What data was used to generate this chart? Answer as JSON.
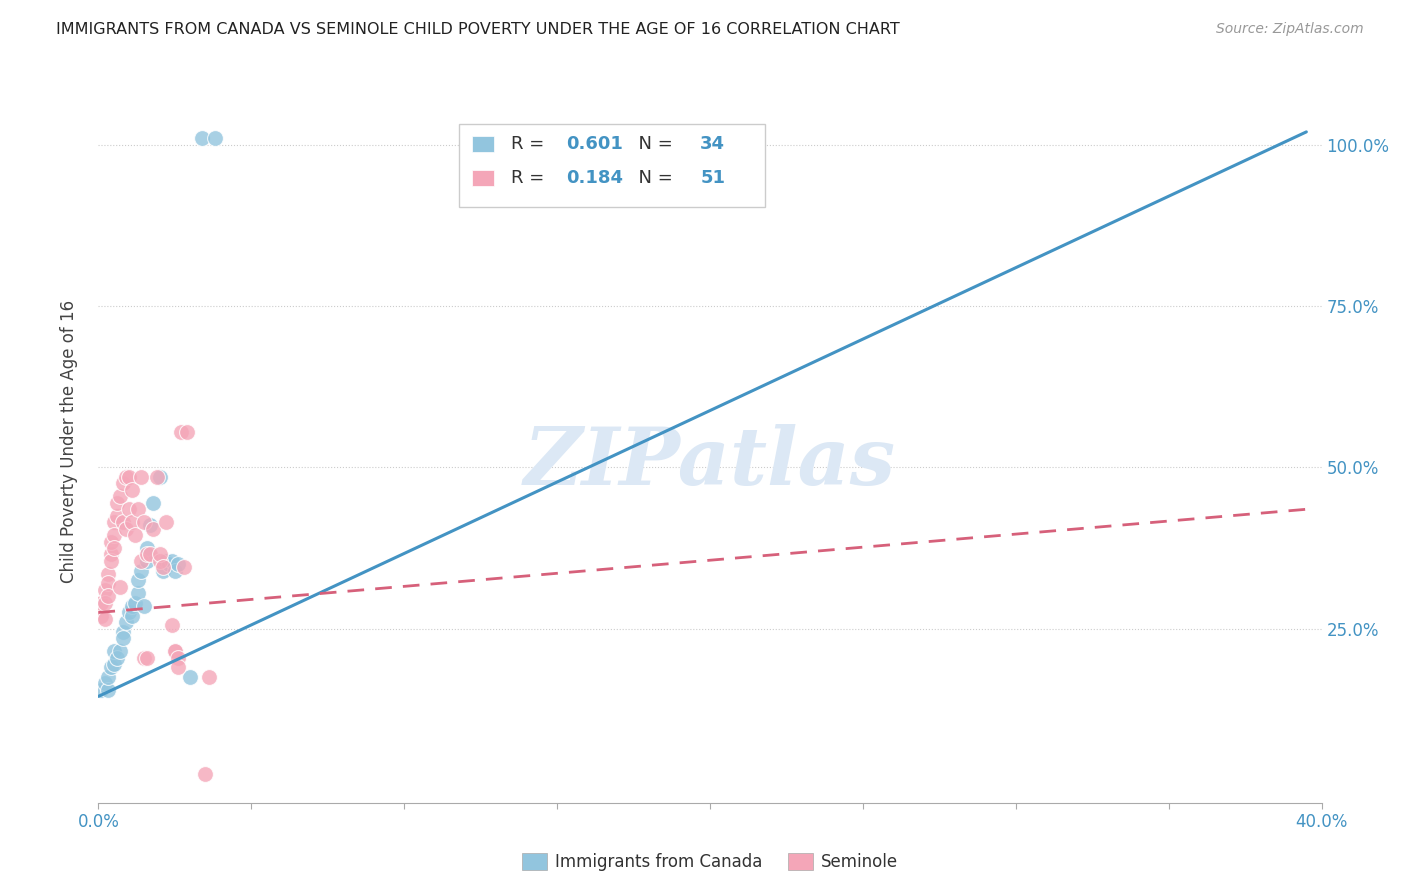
{
  "title": "IMMIGRANTS FROM CANADA VS SEMINOLE CHILD POVERTY UNDER THE AGE OF 16 CORRELATION CHART",
  "source": "Source: ZipAtlas.com",
  "ylabel": "Child Poverty Under the Age of 16",
  "xlim": [
    0.0,
    0.4
  ],
  "ylim": [
    -0.02,
    1.1
  ],
  "x_tick_positions": [
    0.0,
    0.05,
    0.1,
    0.15,
    0.2,
    0.25,
    0.3,
    0.35,
    0.4
  ],
  "y_tick_positions": [
    0.0,
    0.25,
    0.5,
    0.75,
    1.0
  ],
  "watermark": "ZIPatlas",
  "blue_color": "#92c5de",
  "pink_color": "#f4a6b8",
  "blue_line_color": "#4393c3",
  "pink_line_color": "#d6607a",
  "blue_r": "0.601",
  "blue_n": "34",
  "pink_r": "0.184",
  "pink_n": "51",
  "blue_scatter": [
    [
      0.001,
      0.155
    ],
    [
      0.002,
      0.165
    ],
    [
      0.003,
      0.155
    ],
    [
      0.003,
      0.175
    ],
    [
      0.004,
      0.19
    ],
    [
      0.005,
      0.195
    ],
    [
      0.005,
      0.215
    ],
    [
      0.006,
      0.205
    ],
    [
      0.007,
      0.215
    ],
    [
      0.008,
      0.245
    ],
    [
      0.008,
      0.235
    ],
    [
      0.009,
      0.26
    ],
    [
      0.01,
      0.275
    ],
    [
      0.011,
      0.285
    ],
    [
      0.011,
      0.27
    ],
    [
      0.012,
      0.29
    ],
    [
      0.013,
      0.305
    ],
    [
      0.013,
      0.325
    ],
    [
      0.014,
      0.34
    ],
    [
      0.015,
      0.285
    ],
    [
      0.016,
      0.355
    ],
    [
      0.016,
      0.375
    ],
    [
      0.017,
      0.41
    ],
    [
      0.018,
      0.445
    ],
    [
      0.02,
      0.485
    ],
    [
      0.021,
      0.34
    ],
    [
      0.022,
      0.355
    ],
    [
      0.023,
      0.35
    ],
    [
      0.024,
      0.355
    ],
    [
      0.025,
      0.34
    ],
    [
      0.026,
      0.35
    ],
    [
      0.03,
      0.175
    ],
    [
      0.034,
      1.01
    ],
    [
      0.038,
      1.01
    ]
  ],
  "pink_scatter": [
    [
      0.001,
      0.27
    ],
    [
      0.001,
      0.29
    ],
    [
      0.002,
      0.31
    ],
    [
      0.002,
      0.29
    ],
    [
      0.002,
      0.265
    ],
    [
      0.003,
      0.335
    ],
    [
      0.003,
      0.32
    ],
    [
      0.003,
      0.3
    ],
    [
      0.004,
      0.365
    ],
    [
      0.004,
      0.385
    ],
    [
      0.004,
      0.355
    ],
    [
      0.005,
      0.415
    ],
    [
      0.005,
      0.395
    ],
    [
      0.005,
      0.375
    ],
    [
      0.006,
      0.425
    ],
    [
      0.006,
      0.445
    ],
    [
      0.007,
      0.455
    ],
    [
      0.007,
      0.315
    ],
    [
      0.008,
      0.475
    ],
    [
      0.008,
      0.415
    ],
    [
      0.009,
      0.485
    ],
    [
      0.009,
      0.405
    ],
    [
      0.01,
      0.485
    ],
    [
      0.01,
      0.435
    ],
    [
      0.011,
      0.465
    ],
    [
      0.011,
      0.415
    ],
    [
      0.012,
      0.395
    ],
    [
      0.013,
      0.435
    ],
    [
      0.014,
      0.485
    ],
    [
      0.014,
      0.355
    ],
    [
      0.015,
      0.415
    ],
    [
      0.015,
      0.205
    ],
    [
      0.016,
      0.365
    ],
    [
      0.016,
      0.205
    ],
    [
      0.017,
      0.365
    ],
    [
      0.018,
      0.405
    ],
    [
      0.019,
      0.485
    ],
    [
      0.02,
      0.355
    ],
    [
      0.02,
      0.365
    ],
    [
      0.021,
      0.345
    ],
    [
      0.022,
      0.415
    ],
    [
      0.024,
      0.255
    ],
    [
      0.025,
      0.215
    ],
    [
      0.025,
      0.215
    ],
    [
      0.026,
      0.205
    ],
    [
      0.026,
      0.19
    ],
    [
      0.027,
      0.555
    ],
    [
      0.028,
      0.345
    ],
    [
      0.029,
      0.555
    ],
    [
      0.035,
      0.025
    ],
    [
      0.036,
      0.175
    ]
  ],
  "blue_trend_x": [
    0.0,
    0.395
  ],
  "blue_trend_y": [
    0.145,
    1.02
  ],
  "pink_trend_x": [
    0.0,
    0.395
  ],
  "pink_trend_y": [
    0.275,
    0.435
  ]
}
